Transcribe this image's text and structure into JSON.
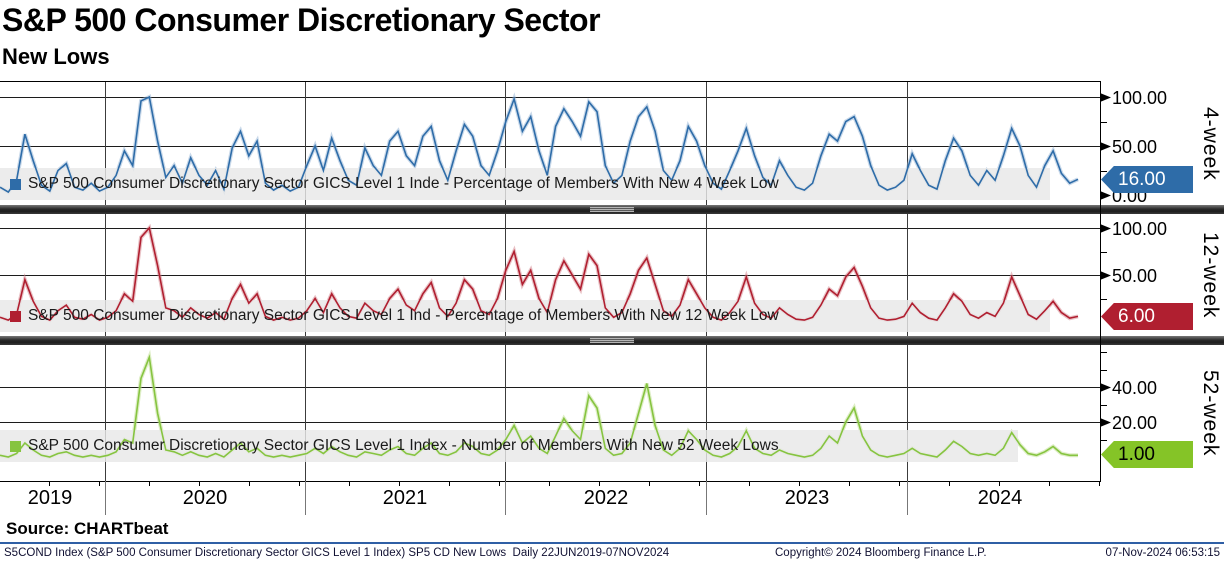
{
  "header": {
    "title": "S&P 500 Consumer Discretionary Sector",
    "subtitle": "New Lows"
  },
  "chart_data": {
    "type": "line",
    "frequency": "Daily",
    "date_range": "22JUN2019-07NOV2024",
    "x_year_labels": [
      "2019",
      "2020",
      "2021",
      "2022",
      "2023",
      "2024"
    ],
    "grid": "on",
    "panels": [
      {
        "id": "4-week",
        "axis_label": "4-week",
        "legend": "S&P 500 Consumer Discretionary Sector GICS Level 1 Inde - Percentage of Members With New 4 Week Low",
        "color": "#2e6ca8",
        "color_light": "#93b3d6",
        "badge_bg": "#2e6ca8",
        "badge_text_color": "#ffffff",
        "last_value": 16,
        "last_value_label": "16.00",
        "ylim": [
          0,
          115
        ],
        "yticks": [
          {
            "value": 0,
            "label": "0.00"
          },
          {
            "value": 50,
            "label": "50.00"
          },
          {
            "value": 100,
            "label": "100.00"
          }
        ],
        "values": [
          8,
          3,
          15,
          62,
          35,
          10,
          4,
          25,
          32,
          8,
          5,
          12,
          4,
          8,
          20,
          45,
          30,
          96,
          100,
          55,
          18,
          30,
          12,
          38,
          20,
          10,
          25,
          6,
          48,
          65,
          40,
          55,
          12,
          5,
          10,
          4,
          8,
          30,
          50,
          25,
          58,
          35,
          15,
          10,
          48,
          30,
          20,
          55,
          65,
          40,
          30,
          60,
          70,
          35,
          15,
          45,
          72,
          60,
          30,
          20,
          45,
          75,
          98,
          65,
          80,
          45,
          20,
          70,
          88,
          75,
          60,
          95,
          85,
          30,
          12,
          20,
          55,
          80,
          90,
          65,
          25,
          15,
          35,
          70,
          55,
          30,
          12,
          6,
          25,
          45,
          68,
          40,
          18,
          10,
          35,
          20,
          8,
          5,
          12,
          40,
          62,
          55,
          75,
          80,
          60,
          30,
          10,
          5,
          8,
          15,
          42,
          25,
          10,
          6,
          35,
          58,
          45,
          20,
          10,
          25,
          15,
          40,
          68,
          50,
          20,
          8,
          30,
          45,
          22,
          12,
          16
        ]
      },
      {
        "id": "12-week",
        "axis_label": "12-week",
        "legend": "S&P 500 Consumer Discretionary Sector GICS Level 1 Ind - Percentage of Members With New 12 Week Low",
        "color": "#b01f30",
        "color_light": "#d4858e",
        "badge_bg": "#b01f30",
        "badge_text_color": "#ffffff",
        "last_value": 6,
        "last_value_label": "6.00",
        "ylim": [
          0,
          115
        ],
        "yticks": [
          {
            "value": 50,
            "label": "50.00"
          },
          {
            "value": 100,
            "label": "100.00"
          }
        ],
        "values": [
          5,
          2,
          8,
          45,
          22,
          6,
          2,
          12,
          18,
          5,
          3,
          8,
          2,
          5,
          12,
          30,
          22,
          90,
          100,
          60,
          15,
          12,
          5,
          15,
          8,
          4,
          10,
          3,
          25,
          40,
          20,
          30,
          6,
          2,
          5,
          2,
          4,
          12,
          25,
          10,
          30,
          15,
          6,
          4,
          20,
          12,
          8,
          25,
          35,
          18,
          12,
          30,
          42,
          15,
          6,
          20,
          45,
          35,
          12,
          8,
          25,
          55,
          75,
          40,
          55,
          25,
          10,
          45,
          65,
          50,
          35,
          72,
          60,
          15,
          5,
          10,
          30,
          55,
          68,
          40,
          12,
          6,
          18,
          45,
          30,
          15,
          5,
          2,
          10,
          22,
          48,
          20,
          8,
          4,
          15,
          8,
          3,
          2,
          5,
          18,
          35,
          28,
          48,
          58,
          38,
          15,
          4,
          2,
          3,
          6,
          20,
          10,
          4,
          2,
          15,
          30,
          22,
          8,
          4,
          10,
          6,
          20,
          48,
          28,
          8,
          3,
          12,
          22,
          10,
          4,
          6
        ]
      },
      {
        "id": "52-week",
        "axis_label": "52-week",
        "legend": "S&P 500 Consumer Discretionary Sector GICS Level 1 Index -  Number of Members With New 52 Week Lows",
        "color": "#86c440",
        "color_light": "#bede8e",
        "badge_bg": "#85c427",
        "badge_text_color": "#000000",
        "last_value": 1,
        "last_value_label": "1.00",
        "ylim": [
          0,
          64
        ],
        "yticks": [
          {
            "value": 20,
            "label": "20.00"
          },
          {
            "value": 40,
            "label": "40.00"
          }
        ],
        "values": [
          1,
          0,
          2,
          8,
          4,
          1,
          0,
          2,
          3,
          1,
          0,
          1,
          0,
          1,
          3,
          10,
          8,
          45,
          57,
          25,
          4,
          3,
          1,
          3,
          1,
          0,
          2,
          0,
          4,
          8,
          3,
          5,
          1,
          0,
          1,
          0,
          1,
          2,
          5,
          2,
          6,
          3,
          1,
          0,
          3,
          2,
          1,
          4,
          6,
          2,
          1,
          5,
          8,
          2,
          1,
          3,
          8,
          6,
          2,
          1,
          4,
          10,
          18,
          8,
          12,
          5,
          2,
          12,
          22,
          15,
          10,
          35,
          28,
          5,
          1,
          2,
          8,
          25,
          42,
          18,
          4,
          1,
          5,
          15,
          10,
          4,
          1,
          0,
          2,
          6,
          15,
          5,
          2,
          1,
          4,
          2,
          1,
          0,
          1,
          5,
          12,
          8,
          20,
          28,
          12,
          4,
          1,
          0,
          1,
          2,
          5,
          2,
          1,
          0,
          4,
          9,
          6,
          2,
          1,
          2,
          1,
          5,
          14,
          7,
          2,
          1,
          3,
          6,
          2,
          1,
          1
        ]
      }
    ]
  },
  "footer": {
    "source_line": "Source: CHARTbeat",
    "bottom_left": "S5COND Index (S&P 500 Consumer Discretionary Sector GICS Level 1 Index) SP5 CD New Lows  Daily 22JUN2019-07NOV2024",
    "bottom_copyright": "Copyright© 2024 Bloomberg Finance L.P.",
    "bottom_datetime": "07-Nov-2024 06:53:15"
  }
}
